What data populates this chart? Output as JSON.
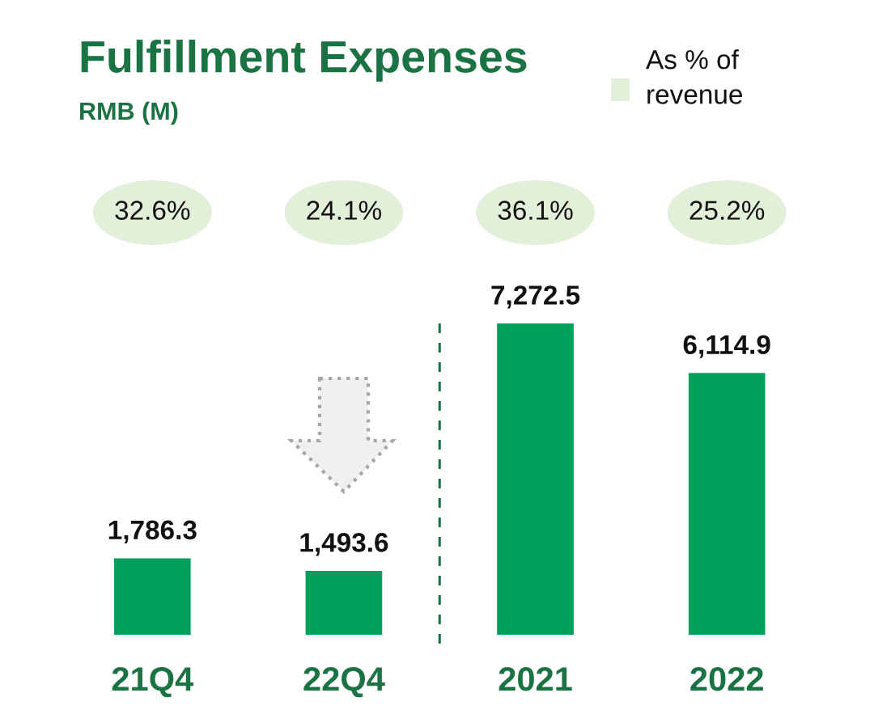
{
  "chart_data": {
    "type": "bar",
    "title": "Fulfillment Expenses",
    "subtitle": "RMB (M)",
    "categories": [
      "21Q4",
      "22Q4",
      "2021",
      "2022"
    ],
    "values": [
      1786.3,
      1493.6,
      7272.5,
      6114.9
    ],
    "color": "#00a05a",
    "value_labels": [
      "1,786.3",
      "1,493.6",
      "7,272.5",
      "6,114.9"
    ],
    "legend_title": "As % of revenue",
    "annotations": [
      "32.6%",
      "24.1%",
      "36.1%",
      "25.2%"
    ],
    "grid": false
  }
}
